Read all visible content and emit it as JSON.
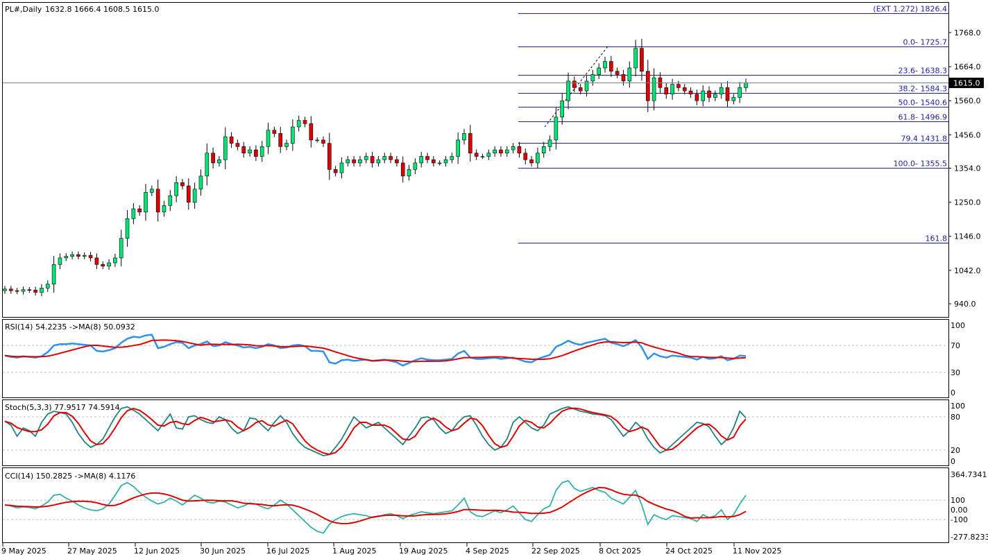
{
  "colors": {
    "bull": "#00e676",
    "bear": "#e00000",
    "fib": "#1e1ea0",
    "rsi": "#3090f0",
    "ma": "#e00000",
    "stoch": "#208080",
    "cci": "#30b0a8",
    "grid": "#bdbdbd"
  },
  "main_header": {
    "symbol": "PL#,Daily",
    "ohlc": "1632.8 1666.4 1608.5 1615.0"
  },
  "price_axis": {
    "labels": [
      "1768.0",
      "1664.0",
      "1560.0",
      "1456.0",
      "1354.0",
      "1250.0",
      "1146.0",
      "1042.0",
      "940.0"
    ],
    "current": "1615.0"
  },
  "fib_levels": [
    {
      "label": "(EXT 1.272)  1826.4",
      "price": 1826.4
    },
    {
      "label": "0.0- 1725.7",
      "price": 1725.7
    },
    {
      "label": "23.6- 1638.3",
      "price": 1638.3
    },
    {
      "label": "38.2- 1584.3",
      "price": 1584.3
    },
    {
      "label": "50.0- 1540.6",
      "price": 1540.6
    },
    {
      "label": "61.8- 1496.9",
      "price": 1496.9
    },
    {
      "label": "79.4 1431.8",
      "price": 1431.8
    },
    {
      "label": "100.0- 1355.5",
      "price": 1355.5
    },
    {
      "label": "161.8",
      "price": 1126.3
    }
  ],
  "rsi": {
    "label": "RSI(14) 54.2235  ->MA(8) 50.0932",
    "axis": [
      "100",
      "70",
      "30",
      "0"
    ]
  },
  "stoch": {
    "label": "Stoch(5,3,3) 77.9517 74.5914",
    "axis": [
      "100",
      "80",
      "20",
      "0"
    ]
  },
  "cci": {
    "label": "CCI(14) 150.2825  ->MA(8) 4.1176",
    "axis": [
      "364.7341",
      "100",
      "0.00",
      "-100",
      "-277.8233"
    ]
  },
  "dates": [
    "9 May 2025",
    "27 May 2025",
    "12 Jun 2025",
    "30 Jun 2025",
    "16 Jul 2025",
    "1 Aug 2025",
    "19 Aug 2025",
    "4 Sep 2025",
    "22 Sep 2025",
    "8 Oct 2025",
    "24 Oct 2025",
    "11 Nov 2025"
  ],
  "chart_data": {
    "type": "candlestick",
    "price_range": [
      900,
      1830
    ],
    "close": [
      985,
      980,
      978,
      983,
      982,
      975,
      988,
      1000,
      1060,
      1080,
      1085,
      1090,
      1085,
      1088,
      1080,
      1060,
      1055,
      1065,
      1080,
      1140,
      1200,
      1230,
      1220,
      1280,
      1290,
      1220,
      1240,
      1270,
      1310,
      1300,
      1250,
      1290,
      1330,
      1400,
      1370,
      1380,
      1450,
      1430,
      1420,
      1400,
      1410,
      1390,
      1420,
      1470,
      1460,
      1420,
      1430,
      1480,
      1500,
      1490,
      1440,
      1440,
      1430,
      1350,
      1340,
      1370,
      1380,
      1370,
      1380,
      1390,
      1370,
      1380,
      1390,
      1380,
      1370,
      1330,
      1350,
      1370,
      1390,
      1380,
      1370,
      1370,
      1380,
      1390,
      1440,
      1460,
      1400,
      1390,
      1390,
      1400,
      1410,
      1400,
      1410,
      1420,
      1400,
      1380,
      1370,
      1400,
      1420,
      1440,
      1510,
      1560,
      1620,
      1600,
      1590,
      1620,
      1640,
      1660,
      1680,
      1650,
      1640,
      1620,
      1660,
      1720,
      1650,
      1560,
      1630,
      1600,
      1580,
      1610,
      1600,
      1590,
      1580,
      1560,
      1590,
      1570,
      1580,
      1600,
      1560,
      1570,
      1600,
      1615
    ],
    "rsi": [
      55,
      53,
      52,
      54,
      53,
      52,
      54,
      60,
      70,
      72,
      72,
      73,
      72,
      71,
      70,
      62,
      61,
      63,
      66,
      74,
      80,
      83,
      82,
      85,
      86,
      66,
      68,
      72,
      75,
      74,
      66,
      70,
      72,
      76,
      69,
      70,
      75,
      72,
      70,
      67,
      68,
      66,
      68,
      72,
      70,
      66,
      67,
      70,
      71,
      69,
      62,
      62,
      61,
      45,
      43,
      48,
      49,
      47,
      48,
      49,
      47,
      48,
      49,
      47,
      45,
      40,
      44,
      48,
      51,
      49,
      48,
      48,
      49,
      50,
      58,
      62,
      52,
      50,
      50,
      51,
      52,
      50,
      51,
      52,
      49,
      46,
      45,
      50,
      53,
      56,
      68,
      72,
      77,
      73,
      71,
      74,
      76,
      78,
      80,
      74,
      72,
      69,
      73,
      78,
      67,
      50,
      58,
      54,
      52,
      55,
      54,
      53,
      52,
      49,
      53,
      50,
      51,
      54,
      48,
      50,
      55,
      54.2
    ],
    "stoch": [
      72,
      65,
      45,
      60,
      55,
      45,
      70,
      85,
      90,
      88,
      85,
      70,
      50,
      35,
      25,
      30,
      40,
      60,
      80,
      95,
      98,
      92,
      85,
      75,
      65,
      55,
      70,
      85,
      60,
      58,
      80,
      82,
      75,
      70,
      68,
      80,
      75,
      60,
      50,
      55,
      78,
      76,
      65,
      55,
      70,
      82,
      70,
      50,
      35,
      25,
      20,
      15,
      10,
      12,
      25,
      40,
      60,
      80,
      70,
      60,
      65,
      70,
      60,
      50,
      40,
      30,
      45,
      60,
      78,
      80,
      75,
      60,
      50,
      55,
      70,
      80,
      82,
      65,
      45,
      30,
      20,
      25,
      40,
      70,
      80,
      70,
      60,
      55,
      65,
      85,
      90,
      95,
      98,
      94,
      90,
      88,
      85,
      84,
      82,
      75,
      60,
      45,
      55,
      70,
      60,
      40,
      25,
      15,
      20,
      30,
      40,
      50,
      60,
      70,
      68,
      62,
      45,
      30,
      40,
      60,
      90,
      77.95
    ],
    "cci": [
      50,
      40,
      20,
      30,
      25,
      10,
      40,
      80,
      150,
      160,
      120,
      90,
      50,
      20,
      0,
      -10,
      10,
      60,
      150,
      250,
      280,
      240,
      180,
      130,
      90,
      60,
      80,
      120,
      90,
      50,
      100,
      150,
      120,
      80,
      70,
      90,
      80,
      50,
      20,
      40,
      70,
      60,
      30,
      10,
      50,
      100,
      60,
      0,
      -60,
      -120,
      -180,
      -220,
      -240,
      -150,
      -100,
      -70,
      -50,
      -40,
      -50,
      -60,
      -80,
      -70,
      -50,
      -40,
      -60,
      -90,
      -60,
      -40,
      -20,
      -30,
      -40,
      -30,
      -20,
      -10,
      50,
      120,
      -20,
      -60,
      -70,
      -40,
      -10,
      -30,
      0,
      40,
      -30,
      -100,
      -120,
      -50,
      10,
      40,
      200,
      280,
      300,
      220,
      190,
      210,
      230,
      200,
      180,
      120,
      90,
      60,
      130,
      200,
      50,
      -150,
      -50,
      -80,
      -100,
      -60,
      -70,
      -80,
      -90,
      -120,
      -50,
      -80,
      -60,
      0,
      -100,
      -50,
      60,
      150
    ],
    "axis_ranges": {
      "rsi": [
        0,
        100
      ],
      "stoch": [
        0,
        100
      ],
      "cci": [
        -277.8233,
        364.7341
      ]
    }
  }
}
